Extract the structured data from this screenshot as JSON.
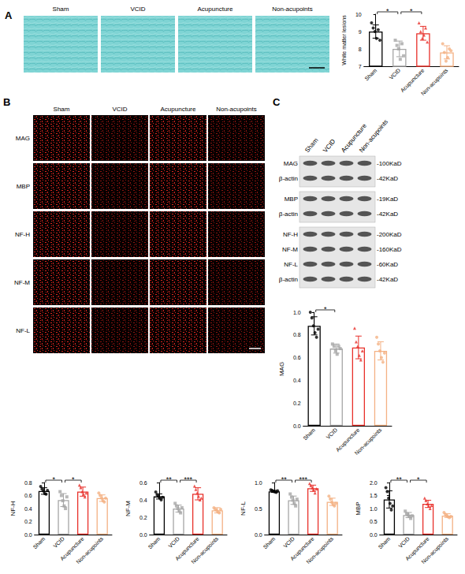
{
  "panels": {
    "A": {
      "letter": "A",
      "image_labels": [
        "Sham",
        "VCID",
        "Acupuncture",
        "Non-acupoints"
      ]
    },
    "B": {
      "letter": "B",
      "columns": [
        "Sham",
        "VCID",
        "Acupuncture",
        "Non-acupoints"
      ],
      "rows": [
        "MAG",
        "MBP",
        "NF-H",
        "NF-M",
        "NF-L"
      ]
    },
    "C": {
      "letter": "C",
      "columns": [
        "Sham",
        "VCID",
        "Acupuncture",
        "Non-acupoints"
      ],
      "blots": [
        [
          {
            "label": "MAG",
            "size": "-100KaD"
          },
          {
            "label": "β-actin",
            "size": "-42KaD"
          }
        ],
        [
          {
            "label": "MBP",
            "size": "-19KaD"
          },
          {
            "label": "β-actin",
            "size": "-42KaD"
          }
        ],
        [
          {
            "label": "NF-H",
            "size": "-200KaD"
          },
          {
            "label": "NF-M",
            "size": "-160KaD"
          },
          {
            "label": "NF-L",
            "size": "-60KaD"
          },
          {
            "label": "β-actin",
            "size": "-42KaD"
          }
        ]
      ]
    }
  },
  "chart_data": [
    {
      "type": "bar",
      "y_label": "White matter lesions",
      "categories": [
        "Sham",
        "VCID",
        "Acupuncture",
        "Non-acupoints"
      ],
      "values": [
        9.0,
        8.0,
        8.9,
        7.8
      ],
      "errors": [
        0.38,
        0.45,
        0.4,
        0.38
      ],
      "points": [
        [
          9.5,
          9.2,
          9.0,
          8.6,
          9.1,
          8.5
        ],
        [
          8.5,
          8.2,
          8.0,
          7.4,
          8.3,
          7.6
        ],
        [
          9.5,
          9.0,
          8.6,
          8.8,
          9.2,
          8.4
        ],
        [
          8.3,
          7.8,
          7.3,
          7.5,
          8.0,
          7.9
        ]
      ],
      "colors": [
        "#000000",
        "#a6a6a6",
        "#e8302a",
        "#f4b183"
      ],
      "markers": [
        "circle",
        "square",
        "triangle",
        "circle"
      ],
      "ylim": [
        7,
        10
      ],
      "yticks": [
        7,
        8,
        9,
        10
      ],
      "grid": false,
      "significance": [
        {
          "from": "Sham",
          "to": "VCID",
          "label": "*"
        },
        {
          "from": "VCID",
          "to": "Acupuncture",
          "label": "*"
        }
      ]
    },
    {
      "type": "bar",
      "y_label": "MAG",
      "categories": [
        "Sham",
        "VCID",
        "Acupuncture",
        "Non-acupoints"
      ],
      "values": [
        0.88,
        0.68,
        0.69,
        0.66
      ],
      "errors": [
        0.08,
        0.04,
        0.1,
        0.08
      ],
      "points": [
        [
          1.0,
          0.95,
          0.88,
          0.82,
          0.78,
          0.85
        ],
        [
          0.72,
          0.7,
          0.66,
          0.63,
          0.7,
          0.68
        ],
        [
          0.86,
          0.74,
          0.7,
          0.62,
          0.58,
          0.66
        ],
        [
          0.78,
          0.72,
          0.66,
          0.6,
          0.56,
          0.64
        ]
      ],
      "colors": [
        "#000000",
        "#a6a6a6",
        "#e8302a",
        "#f4b183"
      ],
      "markers": [
        "circle",
        "square",
        "triangle",
        "circle"
      ],
      "ylim": [
        0,
        1
      ],
      "yticks": [
        {
          "value": 0,
          "label": "0.0"
        },
        0.2,
        0.4,
        0.6,
        0.8,
        {
          "value": 1,
          "label": "1.0"
        }
      ],
      "grid": false,
      "significance": [
        {
          "from": "Sham",
          "to": "VCID",
          "label": "*"
        }
      ]
    },
    {
      "type": "bar",
      "y_label": "NF-H",
      "categories": [
        "Sham",
        "VCID",
        "Acupuncture",
        "Non-acupoints"
      ],
      "values": [
        0.67,
        0.53,
        0.66,
        0.56
      ],
      "errors": [
        0.05,
        0.1,
        0.07,
        0.05
      ],
      "points": [
        [
          0.74,
          0.7,
          0.67,
          0.63,
          0.62,
          0.68
        ],
        [
          0.66,
          0.6,
          0.52,
          0.44,
          0.4,
          0.58
        ],
        [
          0.76,
          0.72,
          0.66,
          0.62,
          0.58,
          0.64
        ],
        [
          0.64,
          0.6,
          0.56,
          0.52,
          0.5,
          0.56
        ]
      ],
      "colors": [
        "#000000",
        "#a6a6a6",
        "#e8302a",
        "#f4b183"
      ],
      "markers": [
        "circle",
        "square",
        "triangle",
        "circle"
      ],
      "ylim": [
        0,
        0.8
      ],
      "yticks": [
        {
          "value": 0,
          "label": "0.0"
        },
        0.2,
        0.4,
        0.6,
        0.8
      ],
      "grid": false,
      "significance": [
        {
          "from": "Sham",
          "to": "VCID",
          "label": "*"
        },
        {
          "from": "VCID",
          "to": "Acupuncture",
          "label": "*"
        }
      ]
    },
    {
      "type": "bar",
      "y_label": "NF-M",
      "categories": [
        "Sham",
        "VCID",
        "Acupuncture",
        "Non-acupoints"
      ],
      "values": [
        0.44,
        0.3,
        0.47,
        0.28
      ],
      "errors": [
        0.03,
        0.04,
        0.07,
        0.03
      ],
      "points": [
        [
          0.49,
          0.46,
          0.44,
          0.42,
          0.4,
          0.43
        ],
        [
          0.36,
          0.33,
          0.3,
          0.27,
          0.25,
          0.31
        ],
        [
          0.56,
          0.52,
          0.48,
          0.44,
          0.4,
          0.42
        ],
        [
          0.31,
          0.29,
          0.28,
          0.26,
          0.25,
          0.29
        ]
      ],
      "colors": [
        "#000000",
        "#a6a6a6",
        "#e8302a",
        "#f4b183"
      ],
      "markers": [
        "circle",
        "square",
        "triangle",
        "circle"
      ],
      "ylim": [
        0,
        0.6
      ],
      "yticks": [
        {
          "value": 0,
          "label": "0.0"
        },
        0.2,
        0.4,
        0.6
      ],
      "grid": false,
      "significance": [
        {
          "from": "Sham",
          "to": "VCID",
          "label": "**"
        },
        {
          "from": "VCID",
          "to": "Acupuncture",
          "label": "***"
        }
      ]
    },
    {
      "type": "bar",
      "y_label": "NF-L",
      "categories": [
        "Sham",
        "VCID",
        "Acupuncture",
        "Non-acupoints"
      ],
      "values": [
        0.83,
        0.66,
        0.89,
        0.63
      ],
      "errors": [
        0.02,
        0.08,
        0.06,
        0.07
      ],
      "points": [
        [
          0.86,
          0.85,
          0.83,
          0.82,
          0.81,
          0.84
        ],
        [
          0.78,
          0.72,
          0.66,
          0.6,
          0.55,
          0.68
        ],
        [
          0.98,
          0.94,
          0.9,
          0.86,
          0.8,
          0.88
        ],
        [
          0.74,
          0.68,
          0.62,
          0.58,
          0.55,
          0.6
        ]
      ],
      "colors": [
        "#000000",
        "#a6a6a6",
        "#e8302a",
        "#f4b183"
      ],
      "markers": [
        "circle",
        "square",
        "triangle",
        "circle"
      ],
      "ylim": [
        0,
        1
      ],
      "yticks": [
        {
          "value": 0,
          "label": "0.0"
        },
        0.5,
        {
          "value": 1,
          "label": "1.0"
        }
      ],
      "grid": false,
      "significance": [
        {
          "from": "Sham",
          "to": "VCID",
          "label": "**"
        },
        {
          "from": "VCID",
          "to": "Acupuncture",
          "label": "***"
        }
      ]
    },
    {
      "type": "bar",
      "y_label": "MBP",
      "categories": [
        "Sham",
        "VCID",
        "Acupuncture",
        "Non-acupoints"
      ],
      "values": [
        1.35,
        0.75,
        1.18,
        0.73
      ],
      "errors": [
        0.33,
        0.1,
        0.14,
        0.07
      ],
      "points": [
        [
          1.8,
          1.65,
          1.4,
          1.2,
          0.95,
          1.1
        ],
        [
          0.9,
          0.8,
          0.75,
          0.7,
          0.62,
          0.72
        ],
        [
          1.4,
          1.3,
          1.18,
          1.1,
          1.0,
          1.12
        ],
        [
          0.85,
          0.78,
          0.72,
          0.68,
          0.65,
          0.7
        ]
      ],
      "colors": [
        "#000000",
        "#a6a6a6",
        "#e8302a",
        "#f4b183"
      ],
      "markers": [
        "circle",
        "square",
        "triangle",
        "circle"
      ],
      "ylim": [
        0,
        2
      ],
      "yticks": [
        {
          "value": 0,
          "label": "0.0"
        },
        0.5,
        {
          "value": 1,
          "label": "1.0"
        },
        1.5,
        {
          "value": 2,
          "label": "2.0"
        }
      ],
      "grid": false,
      "significance": [
        {
          "from": "Sham",
          "to": "VCID",
          "label": "**"
        },
        {
          "from": "VCID",
          "to": "Acupuncture",
          "label": "*"
        }
      ]
    }
  ]
}
